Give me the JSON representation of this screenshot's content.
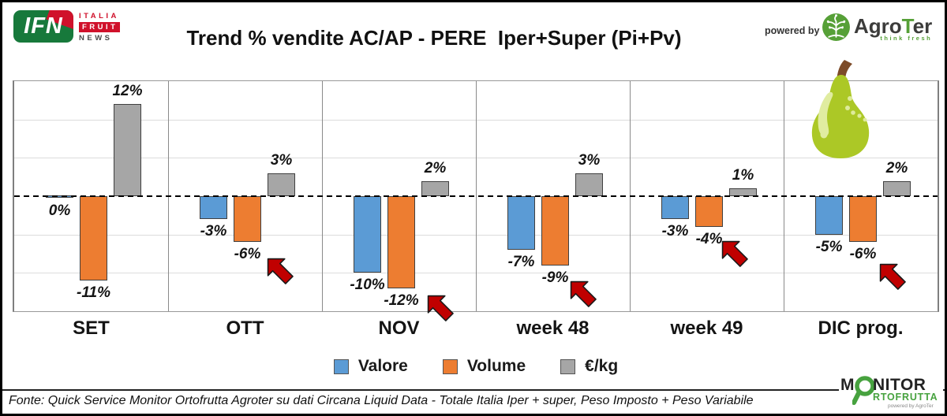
{
  "title": "Trend % vendite AC/AP - PERE  Iper+Super (Pi+Pv)",
  "branding": {
    "ifn": {
      "acronym": "IFN",
      "words": [
        "ITALIA",
        "FRUIT",
        "NEWS"
      ]
    },
    "powered_by_label": "powered by",
    "agroter": {
      "name_pre": "Agro",
      "name_t": "T",
      "name_post": "er",
      "tagline": "think fresh"
    },
    "monitor": {
      "line1_prefix": "M",
      "line1_suffix": "NITOR",
      "line2": "RTOFRUTTA",
      "powered": "powered by AgroTer"
    }
  },
  "chart_data": {
    "type": "bar",
    "title": "Trend % vendite AC/AP - PERE  Iper+Super (Pi+Pv)",
    "categories": [
      "SET",
      "OTT",
      "NOV",
      "week 48",
      "week 49",
      "DIC prog."
    ],
    "series": [
      {
        "name": "Valore",
        "color": "#5B9BD5",
        "values": [
          0,
          -3,
          -10,
          -7,
          -3,
          -5
        ]
      },
      {
        "name": "Volume",
        "color": "#ED7D31",
        "values": [
          -11,
          -6,
          -12,
          -9,
          -4,
          -6
        ]
      },
      {
        "name": "€/kg",
        "color": "#A6A6A6",
        "values": [
          12,
          3,
          2,
          3,
          1,
          2
        ]
      }
    ],
    "data_label_format": "{value}%",
    "xlabel": "",
    "ylabel": "",
    "ylim": [
      -15,
      15
    ],
    "gridline_step": 5,
    "grid": true,
    "zero_line_style": "dashed",
    "legend_position": "bottom",
    "annotations": {
      "red_arrow_color": "#C00000",
      "red_arrow_categories": [
        "OTT",
        "NOV",
        "week 48",
        "week 49",
        "DIC prog."
      ],
      "pear_icon_category": "DIC prog."
    }
  },
  "footer": {
    "source": "Fonte: Quick Service Monitor Ortofrutta Agroter su dati Circana Liquid Data - Totale Italia Iper + super, Peso Imposto + Peso Variabile"
  }
}
